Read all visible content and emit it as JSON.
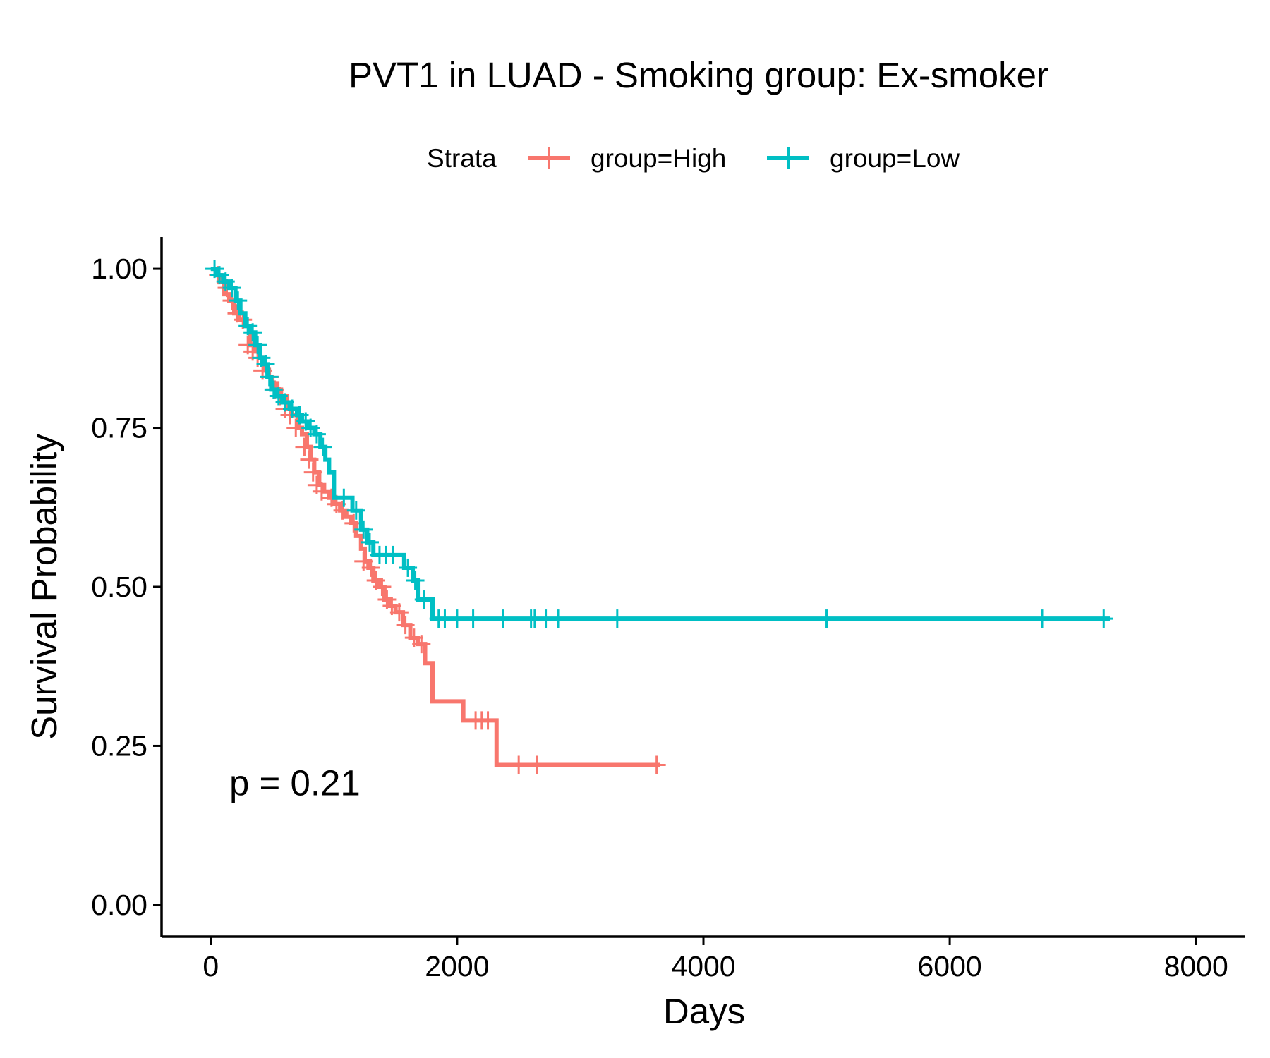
{
  "chart_data": {
    "type": "line",
    "subtype": "kaplan-meier",
    "title": "PVT1 in LUAD - Smoking group: Ex-smoker",
    "xlabel": "Days",
    "ylabel": "Survival Probability",
    "xlim": [
      -400,
      8400
    ],
    "ylim": [
      -0.05,
      1.05
    ],
    "xticks": [
      0,
      2000,
      4000,
      6000,
      8000
    ],
    "xtick_labels": [
      "0",
      "2000",
      "4000",
      "6000",
      "8000"
    ],
    "yticks": [
      0,
      0.25,
      0.5,
      0.75,
      1.0
    ],
    "ytick_labels": [
      "0.00",
      "0.25",
      "0.50",
      "0.75",
      "1.00"
    ],
    "grid": false,
    "legend": {
      "title": "Strata",
      "position": "top"
    },
    "annotation": "p = 0.21",
    "annotation_at": [
      150,
      0.19
    ],
    "series": [
      {
        "name": "group=High",
        "color": "#F8766D",
        "steps": [
          [
            0,
            1.0
          ],
          [
            40,
            0.99
          ],
          [
            80,
            0.98
          ],
          [
            110,
            0.96
          ],
          [
            150,
            0.95
          ],
          [
            190,
            0.93
          ],
          [
            230,
            0.92
          ],
          [
            280,
            0.91
          ],
          [
            320,
            0.88
          ],
          [
            360,
            0.87
          ],
          [
            400,
            0.86
          ],
          [
            440,
            0.84
          ],
          [
            470,
            0.83
          ],
          [
            500,
            0.82
          ],
          [
            540,
            0.81
          ],
          [
            570,
            0.8
          ],
          [
            620,
            0.78
          ],
          [
            660,
            0.77
          ],
          [
            710,
            0.75
          ],
          [
            740,
            0.74
          ],
          [
            780,
            0.72
          ],
          [
            810,
            0.7
          ],
          [
            840,
            0.68
          ],
          [
            880,
            0.66
          ],
          [
            920,
            0.65
          ],
          [
            960,
            0.64
          ],
          [
            1000,
            0.63
          ],
          [
            1050,
            0.62
          ],
          [
            1100,
            0.61
          ],
          [
            1140,
            0.6
          ],
          [
            1180,
            0.58
          ],
          [
            1220,
            0.56
          ],
          [
            1250,
            0.54
          ],
          [
            1280,
            0.53
          ],
          [
            1320,
            0.51
          ],
          [
            1370,
            0.5
          ],
          [
            1410,
            0.48
          ],
          [
            1450,
            0.47
          ],
          [
            1500,
            0.46
          ],
          [
            1560,
            0.44
          ],
          [
            1620,
            0.42
          ],
          [
            1680,
            0.41
          ],
          [
            1740,
            0.38
          ],
          [
            1800,
            0.32
          ],
          [
            2050,
            0.29
          ],
          [
            2320,
            0.22
          ]
        ],
        "end": 3650,
        "censors": [
          [
            60,
            0.99
          ],
          [
            130,
            0.97
          ],
          [
            170,
            0.95
          ],
          [
            210,
            0.93
          ],
          [
            260,
            0.92
          ],
          [
            300,
            0.88
          ],
          [
            340,
            0.87
          ],
          [
            380,
            0.86
          ],
          [
            420,
            0.84
          ],
          [
            480,
            0.83
          ],
          [
            520,
            0.81
          ],
          [
            560,
            0.8
          ],
          [
            600,
            0.78
          ],
          [
            640,
            0.77
          ],
          [
            690,
            0.75
          ],
          [
            760,
            0.72
          ],
          [
            800,
            0.7
          ],
          [
            830,
            0.68
          ],
          [
            860,
            0.66
          ],
          [
            900,
            0.65
          ],
          [
            980,
            0.64
          ],
          [
            1020,
            0.63
          ],
          [
            1070,
            0.62
          ],
          [
            1160,
            0.6
          ],
          [
            1240,
            0.54
          ],
          [
            1300,
            0.53
          ],
          [
            1340,
            0.51
          ],
          [
            1390,
            0.5
          ],
          [
            1430,
            0.48
          ],
          [
            1470,
            0.47
          ],
          [
            1530,
            0.46
          ],
          [
            1580,
            0.44
          ],
          [
            1650,
            0.42
          ],
          [
            1710,
            0.41
          ],
          [
            2150,
            0.29
          ],
          [
            2200,
            0.29
          ],
          [
            2250,
            0.29
          ],
          [
            2500,
            0.22
          ],
          [
            2650,
            0.22
          ],
          [
            3620,
            0.22
          ]
        ]
      },
      {
        "name": "group=Low",
        "color": "#00BFC4",
        "steps": [
          [
            0,
            1.0
          ],
          [
            50,
            0.99
          ],
          [
            100,
            0.98
          ],
          [
            150,
            0.97
          ],
          [
            200,
            0.95
          ],
          [
            240,
            0.93
          ],
          [
            280,
            0.91
          ],
          [
            320,
            0.9
          ],
          [
            360,
            0.88
          ],
          [
            400,
            0.86
          ],
          [
            430,
            0.85
          ],
          [
            460,
            0.83
          ],
          [
            490,
            0.81
          ],
          [
            530,
            0.8
          ],
          [
            580,
            0.79
          ],
          [
            640,
            0.78
          ],
          [
            700,
            0.77
          ],
          [
            740,
            0.76
          ],
          [
            790,
            0.75
          ],
          [
            840,
            0.74
          ],
          [
            890,
            0.72
          ],
          [
            930,
            0.7
          ],
          [
            960,
            0.68
          ],
          [
            1000,
            0.64
          ],
          [
            1150,
            0.62
          ],
          [
            1220,
            0.59
          ],
          [
            1270,
            0.57
          ],
          [
            1320,
            0.55
          ],
          [
            1570,
            0.53
          ],
          [
            1640,
            0.51
          ],
          [
            1680,
            0.48
          ],
          [
            1800,
            0.45
          ]
        ],
        "end": 7300,
        "censors": [
          [
            30,
            1.0
          ],
          [
            70,
            0.99
          ],
          [
            120,
            0.98
          ],
          [
            170,
            0.97
          ],
          [
            220,
            0.95
          ],
          [
            300,
            0.91
          ],
          [
            340,
            0.9
          ],
          [
            380,
            0.88
          ],
          [
            410,
            0.86
          ],
          [
            445,
            0.85
          ],
          [
            475,
            0.83
          ],
          [
            510,
            0.81
          ],
          [
            550,
            0.8
          ],
          [
            600,
            0.79
          ],
          [
            660,
            0.78
          ],
          [
            720,
            0.77
          ],
          [
            770,
            0.76
          ],
          [
            810,
            0.75
          ],
          [
            860,
            0.74
          ],
          [
            910,
            0.72
          ],
          [
            1080,
            0.64
          ],
          [
            1180,
            0.62
          ],
          [
            1240,
            0.59
          ],
          [
            1290,
            0.57
          ],
          [
            1370,
            0.55
          ],
          [
            1420,
            0.55
          ],
          [
            1480,
            0.55
          ],
          [
            1600,
            0.53
          ],
          [
            1660,
            0.51
          ],
          [
            1730,
            0.48
          ],
          [
            1850,
            0.45
          ],
          [
            1900,
            0.45
          ],
          [
            2000,
            0.45
          ],
          [
            2130,
            0.45
          ],
          [
            2370,
            0.45
          ],
          [
            2600,
            0.45
          ],
          [
            2630,
            0.45
          ],
          [
            2720,
            0.45
          ],
          [
            2820,
            0.45
          ],
          [
            3300,
            0.45
          ],
          [
            5000,
            0.45
          ],
          [
            6750,
            0.45
          ],
          [
            7250,
            0.45
          ]
        ]
      }
    ]
  }
}
